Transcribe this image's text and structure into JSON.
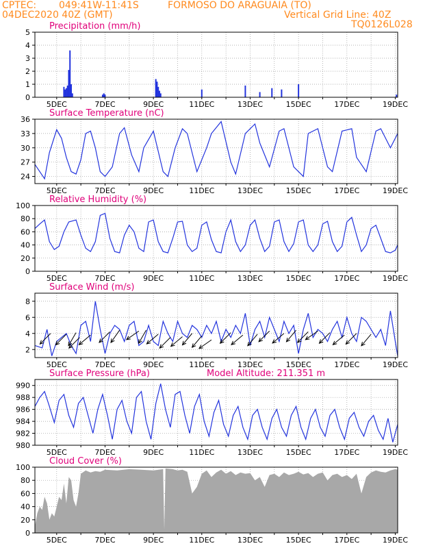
{
  "header": {
    "source": "CPTEC:",
    "coords": "049:41W-11:41S",
    "location": "FORMOSO DO ARAGUAIA (TO)",
    "date": "04DEC2020 40Z (GMT)",
    "grid_note": "Vertical Grid Line: 40Z",
    "code": "TQ0126L028"
  },
  "colors": {
    "header": "#ff8a1e",
    "title": "#e0007a",
    "series": "#2233dd",
    "cloud": "#a8a8a8",
    "wind_arrow": "#000000",
    "grid": "#999999"
  },
  "x_axis": {
    "tick_labels": [
      "5DEC",
      "7DEC",
      "9DEC",
      "11DEC",
      "13DEC",
      "15DEC",
      "17DEC",
      "19DEC"
    ],
    "tick_days": [
      5,
      7,
      9,
      11,
      13,
      15,
      17,
      19
    ],
    "start_day": 4.1,
    "end_day": 19.1
  },
  "chart_data": [
    {
      "type": "bar",
      "title": "Precipitation (mm/h)",
      "ylim": [
        0,
        5
      ],
      "yticks": [
        0,
        1,
        2,
        3,
        4,
        5
      ],
      "grid": true,
      "points": [
        [
          5.3,
          0.8
        ],
        [
          5.35,
          0.6
        ],
        [
          5.4,
          0.7
        ],
        [
          5.45,
          0.9
        ],
        [
          5.5,
          2.1
        ],
        [
          5.55,
          3.6
        ],
        [
          5.6,
          1.0
        ],
        [
          5.65,
          0.3
        ],
        [
          6.9,
          0.2
        ],
        [
          6.95,
          0.3
        ],
        [
          7.0,
          0.2
        ],
        [
          9.1,
          1.4
        ],
        [
          9.15,
          1.2
        ],
        [
          9.2,
          0.8
        ],
        [
          9.25,
          0.5
        ],
        [
          9.3,
          0.3
        ],
        [
          11.0,
          0.6
        ],
        [
          12.8,
          0.9
        ],
        [
          13.4,
          0.4
        ],
        [
          13.9,
          0.7
        ],
        [
          14.3,
          0.6
        ],
        [
          15.0,
          1.0
        ],
        [
          19.05,
          0.2
        ]
      ]
    },
    {
      "type": "line",
      "title": "Surface Temperature (nC)",
      "ylim": [
        22.5,
        36
      ],
      "yticks": [
        24,
        27,
        30,
        33,
        36
      ],
      "grid": true,
      "x": [
        4.1,
        4.3,
        4.5,
        4.7,
        5.0,
        5.2,
        5.4,
        5.6,
        5.8,
        6.0,
        6.2,
        6.4,
        6.6,
        6.8,
        7.0,
        7.3,
        7.6,
        7.8,
        8.1,
        8.4,
        8.6,
        9.0,
        9.4,
        9.6,
        9.9,
        10.2,
        10.4,
        10.8,
        11.2,
        11.4,
        11.8,
        12.2,
        12.4,
        12.8,
        13.2,
        13.4,
        13.8,
        14.2,
        14.4,
        14.8,
        15.2,
        15.4,
        15.8,
        16.2,
        16.4,
        16.8,
        17.2,
        17.4,
        17.8,
        18.2,
        18.4,
        18.8,
        19.1
      ],
      "values": [
        26.5,
        25.0,
        23.5,
        29.0,
        33.8,
        32.0,
        28.0,
        25.0,
        24.5,
        27.5,
        33.0,
        33.5,
        30.0,
        25.0,
        24.0,
        26.0,
        33.0,
        34.2,
        28.5,
        25.0,
        30.0,
        33.5,
        25.0,
        24.0,
        30.0,
        34.0,
        33.0,
        25.0,
        30.0,
        33.0,
        35.5,
        27.0,
        24.5,
        33.0,
        35.0,
        31.0,
        26.0,
        33.5,
        34.0,
        26.0,
        24.0,
        33.0,
        34.0,
        26.0,
        25.0,
        33.5,
        34.0,
        28.0,
        25.0,
        33.5,
        34.0,
        30.0,
        33.0
      ]
    },
    {
      "type": "line",
      "title": "Relative Humidity (%)",
      "ylim": [
        0,
        100
      ],
      "yticks": [
        0,
        20,
        40,
        60,
        80,
        100
      ],
      "grid": true,
      "x": [
        4.1,
        4.3,
        4.5,
        4.7,
        4.9,
        5.1,
        5.3,
        5.5,
        5.8,
        6.0,
        6.2,
        6.4,
        6.6,
        6.8,
        7.0,
        7.2,
        7.4,
        7.6,
        7.8,
        8.0,
        8.2,
        8.4,
        8.6,
        8.8,
        9.0,
        9.2,
        9.4,
        9.6,
        9.8,
        10.0,
        10.2,
        10.4,
        10.6,
        10.8,
        11.0,
        11.2,
        11.4,
        11.6,
        11.8,
        12.0,
        12.2,
        12.4,
        12.6,
        12.8,
        13.0,
        13.2,
        13.4,
        13.6,
        13.8,
        14.0,
        14.2,
        14.4,
        14.6,
        14.8,
        15.0,
        15.2,
        15.4,
        15.6,
        15.8,
        16.0,
        16.2,
        16.4,
        16.6,
        16.8,
        17.0,
        17.2,
        17.4,
        17.6,
        17.8,
        18.0,
        18.2,
        18.4,
        18.6,
        18.8,
        19.0,
        19.1
      ],
      "values": [
        65,
        72,
        78,
        45,
        33,
        38,
        60,
        75,
        78,
        55,
        35,
        30,
        45,
        85,
        88,
        50,
        30,
        28,
        55,
        70,
        60,
        35,
        30,
        75,
        78,
        45,
        30,
        28,
        50,
        75,
        76,
        40,
        30,
        35,
        70,
        75,
        48,
        30,
        28,
        60,
        78,
        45,
        30,
        40,
        70,
        78,
        50,
        30,
        38,
        75,
        78,
        45,
        30,
        42,
        75,
        78,
        40,
        30,
        40,
        72,
        76,
        45,
        30,
        38,
        75,
        82,
        55,
        30,
        40,
        65,
        70,
        50,
        30,
        28,
        32,
        40
      ]
    },
    {
      "type": "line",
      "title": "Surface Wind (m/s)",
      "ylim": [
        1,
        9
      ],
      "yticks": [
        2,
        4,
        6,
        8
      ],
      "grid": true,
      "x": [
        4.1,
        4.4,
        4.6,
        4.8,
        5.0,
        5.2,
        5.4,
        5.6,
        5.8,
        6.0,
        6.2,
        6.4,
        6.6,
        6.8,
        7.0,
        7.2,
        7.4,
        7.6,
        7.8,
        8.0,
        8.2,
        8.4,
        8.6,
        8.8,
        9.0,
        9.2,
        9.4,
        9.6,
        9.8,
        10.0,
        10.2,
        10.4,
        10.6,
        10.8,
        11.0,
        11.2,
        11.4,
        11.6,
        11.8,
        12.0,
        12.2,
        12.4,
        12.6,
        12.8,
        13.0,
        13.2,
        13.4,
        13.6,
        13.8,
        14.0,
        14.2,
        14.4,
        14.6,
        14.8,
        15.0,
        15.2,
        15.4,
        15.6,
        15.8,
        16.0,
        16.2,
        16.4,
        16.6,
        16.8,
        17.0,
        17.2,
        17.4,
        17.6,
        17.8,
        18.0,
        18.2,
        18.4,
        18.6,
        18.8,
        19.0,
        19.1
      ],
      "values": [
        2.5,
        2.2,
        4.5,
        1.2,
        3.0,
        3.5,
        4.0,
        2.5,
        1.5,
        5.0,
        5.5,
        3.0,
        8.0,
        4.5,
        1.5,
        4.0,
        5.0,
        4.5,
        3.0,
        5.0,
        5.5,
        2.5,
        3.0,
        5.0,
        3.0,
        2.5,
        5.5,
        4.0,
        3.0,
        5.5,
        4.0,
        3.5,
        5.0,
        4.5,
        3.5,
        5.0,
        4.0,
        5.5,
        3.0,
        4.5,
        3.5,
        5.0,
        4.0,
        6.5,
        2.5,
        4.5,
        5.5,
        3.5,
        6.0,
        4.5,
        3.0,
        5.5,
        4.0,
        5.0,
        1.5,
        4.5,
        6.5,
        3.5,
        4.5,
        4.0,
        3.0,
        4.5,
        5.5,
        3.5,
        6.0,
        4.0,
        3.0,
        6.0,
        5.5,
        4.5,
        3.5,
        4.5,
        2.5,
        6.8,
        3.0,
        1.2
      ],
      "arrows": [
        [
          4.75,
          4.0,
          225
        ],
        [
          5.4,
          3.9,
          225
        ],
        [
          5.8,
          4.1,
          210
        ],
        [
          5.95,
          3.5,
          225
        ],
        [
          6.4,
          3.8,
          230
        ],
        [
          7.2,
          4.2,
          225
        ],
        [
          7.6,
          4.4,
          215
        ],
        [
          8.4,
          4.3,
          235
        ],
        [
          8.7,
          4.4,
          210
        ],
        [
          9.2,
          3.9,
          230
        ],
        [
          9.7,
          3.5,
          225
        ],
        [
          10.2,
          3.6,
          230
        ],
        [
          10.6,
          4.0,
          220
        ],
        [
          11.0,
          3.7,
          220
        ],
        [
          11.4,
          3.2,
          235
        ],
        [
          12.2,
          4.1,
          225
        ],
        [
          12.7,
          3.8,
          230
        ],
        [
          13.3,
          3.9,
          220
        ],
        [
          13.8,
          4.3,
          225
        ],
        [
          14.4,
          4.0,
          230
        ],
        [
          14.9,
          4.4,
          220
        ],
        [
          15.4,
          4.2,
          225
        ],
        [
          15.8,
          4.3,
          235
        ],
        [
          16.3,
          4.1,
          225
        ],
        [
          16.9,
          3.8,
          230
        ],
        [
          17.4,
          4.0,
          225
        ],
        [
          18.0,
          3.9,
          220
        ]
      ]
    },
    {
      "type": "line",
      "title": "Surface Pressure (hPa)",
      "annotation": "Model Altitude: 211.351 m",
      "ylim": [
        980,
        991
      ],
      "yticks": [
        980,
        982,
        984,
        986,
        988,
        990
      ],
      "grid": true,
      "x": [
        4.1,
        4.3,
        4.5,
        4.7,
        4.9,
        5.1,
        5.3,
        5.5,
        5.7,
        5.9,
        6.1,
        6.3,
        6.5,
        6.7,
        6.9,
        7.1,
        7.3,
        7.5,
        7.7,
        7.9,
        8.1,
        8.3,
        8.5,
        8.7,
        8.9,
        9.1,
        9.3,
        9.5,
        9.7,
        9.9,
        10.1,
        10.3,
        10.5,
        10.7,
        10.9,
        11.1,
        11.3,
        11.5,
        11.7,
        11.9,
        12.1,
        12.3,
        12.5,
        12.7,
        12.9,
        13.1,
        13.3,
        13.5,
        13.7,
        13.9,
        14.1,
        14.3,
        14.5,
        14.7,
        14.9,
        15.1,
        15.3,
        15.5,
        15.7,
        15.9,
        16.1,
        16.3,
        16.5,
        16.7,
        16.9,
        17.1,
        17.3,
        17.5,
        17.7,
        17.9,
        18.1,
        18.3,
        18.5,
        18.7,
        18.9,
        19.1
      ],
      "values": [
        986.5,
        988.0,
        989.0,
        986.5,
        983.8,
        987.5,
        988.5,
        985.0,
        983.0,
        987.0,
        988.0,
        985.0,
        982.0,
        986.0,
        988.5,
        985.0,
        981.0,
        986.0,
        987.5,
        984.0,
        982.0,
        988.0,
        989.0,
        984.0,
        981.0,
        987.0,
        990.3,
        986.0,
        983.0,
        988.5,
        989.0,
        985.0,
        982.0,
        986.5,
        988.5,
        984.0,
        981.5,
        985.5,
        987.5,
        983.5,
        981.5,
        985.0,
        986.5,
        983.0,
        981.0,
        985.0,
        986.0,
        983.0,
        981.0,
        984.5,
        986.0,
        983.0,
        981.5,
        985.0,
        986.5,
        983.0,
        981.0,
        984.5,
        986.0,
        983.0,
        981.5,
        985.0,
        986.0,
        983.0,
        981.0,
        984.5,
        985.5,
        983.0,
        981.5,
        984.0,
        985.0,
        982.5,
        981.0,
        984.5,
        980.5,
        983.5
      ]
    },
    {
      "type": "area",
      "title": "Cloud Cover (%)",
      "ylim": [
        0,
        100
      ],
      "yticks": [
        0,
        20,
        40,
        60,
        80,
        100
      ],
      "grid": true,
      "x": [
        4.1,
        4.2,
        4.3,
        4.4,
        4.5,
        4.6,
        4.7,
        4.8,
        4.9,
        5.0,
        5.1,
        5.2,
        5.3,
        5.4,
        5.5,
        5.6,
        5.7,
        5.8,
        5.9,
        6.0,
        6.2,
        6.4,
        6.6,
        6.8,
        7.0,
        7.5,
        8.0,
        8.5,
        9.0,
        9.4,
        9.45,
        9.5,
        9.8,
        10.0,
        10.2,
        10.4,
        10.6,
        10.8,
        11.0,
        11.2,
        11.4,
        11.6,
        11.8,
        12.0,
        12.2,
        12.4,
        12.6,
        12.8,
        13.0,
        13.2,
        13.4,
        13.6,
        13.8,
        14.0,
        14.2,
        14.4,
        14.6,
        14.8,
        15.0,
        15.2,
        15.4,
        15.6,
        15.8,
        16.0,
        16.2,
        16.4,
        16.6,
        16.8,
        17.0,
        17.2,
        17.4,
        17.6,
        17.8,
        18.0,
        18.2,
        18.4,
        18.6,
        18.8,
        19.0,
        19.1
      ],
      "values": [
        10,
        30,
        40,
        35,
        55,
        45,
        20,
        30,
        25,
        40,
        55,
        50,
        75,
        45,
        85,
        80,
        50,
        40,
        60,
        90,
        95,
        92,
        94,
        93,
        96,
        95,
        97,
        96,
        95,
        97,
        5,
        98,
        97,
        95,
        96,
        93,
        60,
        70,
        90,
        95,
        85,
        92,
        96,
        90,
        94,
        88,
        92,
        90,
        91,
        80,
        85,
        70,
        88,
        90,
        85,
        92,
        88,
        90,
        93,
        89,
        91,
        85,
        90,
        92,
        80,
        88,
        90,
        85,
        88,
        82,
        90,
        60,
        85,
        92,
        95,
        93,
        92,
        95,
        97,
        96
      ]
    }
  ]
}
